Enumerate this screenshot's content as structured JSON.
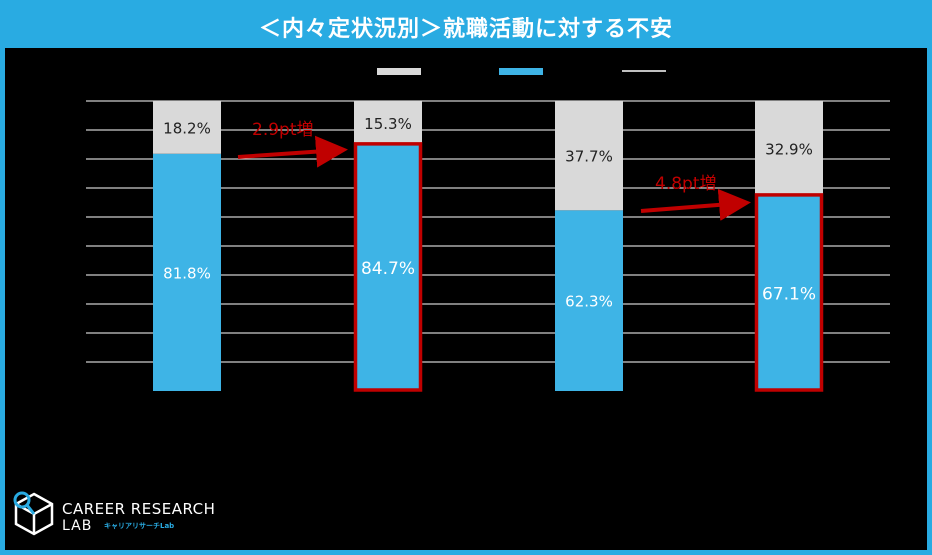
{
  "title": "＜内々定状況別＞就職活動に対する不安",
  "colors": {
    "title_bg": "#29ABE2",
    "bar_blue": "#3EB4E6",
    "bar_gray": "#D9D9D9",
    "highlight": "#C00000",
    "annotation": "#C00000"
  },
  "chart_data": {
    "type": "bar",
    "stacked": true,
    "series": [
      {
        "values": [
          81.8,
          84.7,
          62.3,
          67.1
        ],
        "labels": [
          "81.8%",
          "84.7%",
          "62.3%",
          "67.1%"
        ],
        "color": "#3EB4E6"
      },
      {
        "values": [
          18.2,
          15.3,
          37.7,
          32.9
        ],
        "labels": [
          "18.2%",
          "15.3%",
          "37.7%",
          "32.9%"
        ],
        "color": "#D9D9D9"
      }
    ],
    "highlighted_bars": [
      1,
      3
    ],
    "ylim": [
      0,
      100
    ],
    "grid": true,
    "legend_placement": "top-center",
    "annotations": [
      {
        "text": "2.9pt増",
        "from_bar": 0,
        "to_bar": 1
      },
      {
        "text": "4.8pt増",
        "from_bar": 2,
        "to_bar": 3
      }
    ]
  },
  "logo": {
    "line1": "CAREER RESEARCH",
    "line2": "LAB",
    "sub": "キャリアリサーチLab",
    "icon": "cube-magnifier-icon"
  }
}
